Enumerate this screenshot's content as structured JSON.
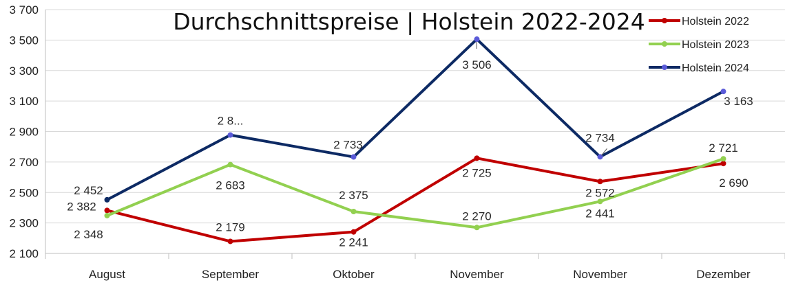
{
  "chart_data": {
    "type": "line",
    "title": "Durchschnittspreise | Holstein 2022-2024",
    "categories": [
      "August",
      "September",
      "Oktober",
      "November",
      "November",
      "Dezember"
    ],
    "ylim": [
      2100,
      3700
    ],
    "y_ticks": [
      "2 100",
      "2 300",
      "2 500",
      "2 700",
      "2 900",
      "3 100",
      "3 300",
      "3 500",
      "3 700"
    ],
    "grid": true,
    "legend_position": "top-right",
    "series": [
      {
        "name": "Holstein 2022",
        "color": "#c00000",
        "values": [
          2382,
          2179,
          2241,
          2725,
          2572,
          2690
        ],
        "labels": [
          "2 382",
          "2 179",
          "2 241",
          "2 725",
          "2 572",
          "2 690"
        ]
      },
      {
        "name": "Holstein 2023",
        "color": "#92d050",
        "values": [
          2348,
          2683,
          2375,
          2270,
          2441,
          2721
        ],
        "labels": [
          "2 348",
          "2 683",
          "2 375",
          "2 270",
          "2 441",
          "2 721"
        ]
      },
      {
        "name": "Holstein 2024",
        "color": "#0d2a64",
        "marker_color": "#5a5ad8",
        "values": [
          2452,
          2877,
          2733,
          3506,
          2734,
          3163
        ],
        "labels": [
          "2 452",
          "2 8...",
          "2 733",
          "3 506",
          "2 734",
          "3 163"
        ]
      }
    ]
  }
}
